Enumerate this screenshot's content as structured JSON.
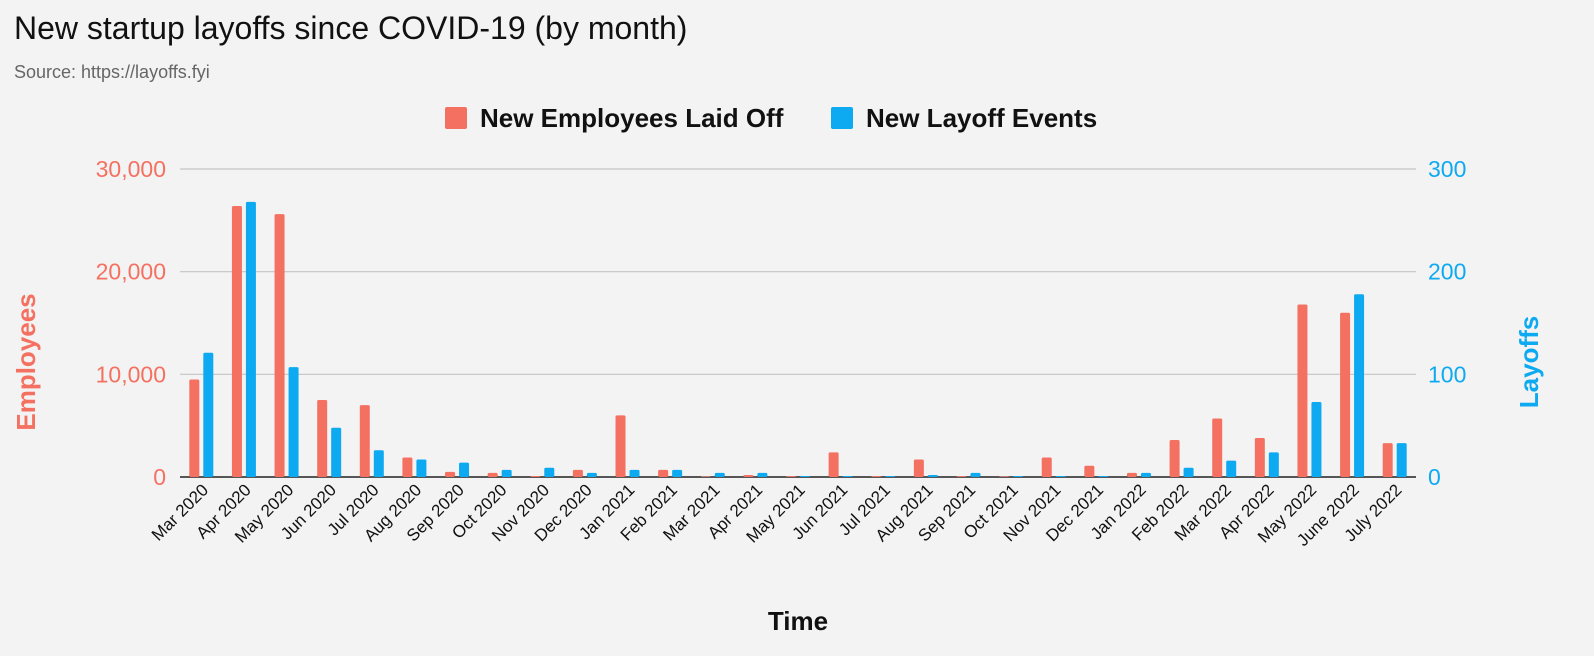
{
  "header": {
    "title": "New startup layoffs since COVID-19 (by month)",
    "subtitle": "Source: https://layoffs.fyi"
  },
  "colors": {
    "employees": "#f47161",
    "layoffs": "#0daaf1",
    "grid": "#c4c4c4",
    "background": "#f3f3f3"
  },
  "chart_data": {
    "type": "bar",
    "title": "New startup layoffs since COVID-19 (by month)",
    "subtitle": "Source: https://layoffs.fyi",
    "xlabel": "Time",
    "ylabel_left": "Employees",
    "ylabel_right": "Layoffs",
    "ylim_left": [
      0,
      30000
    ],
    "ylim_right": [
      0,
      300
    ],
    "yticks_left": [
      "0",
      "10,000",
      "20,000",
      "30,000"
    ],
    "yticks_right": [
      "0",
      "100",
      "200",
      "300"
    ],
    "grid": true,
    "legend_position": "top-center",
    "categories": [
      "Mar 2020",
      "Apr 2020",
      "May 2020",
      "Jun 2020",
      "Jul 2020",
      "Aug 2020",
      "Sep 2020",
      "Oct 2020",
      "Nov 2020",
      "Dec 2020",
      "Jan 2021",
      "Feb 2021",
      "Mar 2021",
      "Apr 2021",
      "May 2021",
      "Jun 2021",
      "Jul 2021",
      "Aug 2021",
      "Sep 2021",
      "Oct 2021",
      "Nov 2021",
      "Dec 2021",
      "Jan 2022",
      "Feb 2022",
      "Mar 2022",
      "Apr 2022",
      "May 2022",
      "June 2022",
      "July 2022"
    ],
    "series": [
      {
        "name": "New Employees Laid Off",
        "axis": "left",
        "values": [
          9500,
          26400,
          25600,
          7500,
          7000,
          1900,
          500,
          400,
          100,
          700,
          6000,
          700,
          50,
          200,
          80,
          2400,
          80,
          1700,
          80,
          50,
          1900,
          1100,
          400,
          3600,
          5700,
          3800,
          16800,
          16000,
          3300
        ]
      },
      {
        "name": "New Layoff Events",
        "axis": "right",
        "values": [
          121,
          268,
          107,
          48,
          26,
          17,
          14,
          7,
          9,
          4,
          7,
          7,
          4,
          4,
          1,
          1,
          1,
          2,
          4,
          1,
          1,
          1,
          4,
          9,
          16,
          24,
          73,
          178,
          33
        ]
      }
    ]
  }
}
